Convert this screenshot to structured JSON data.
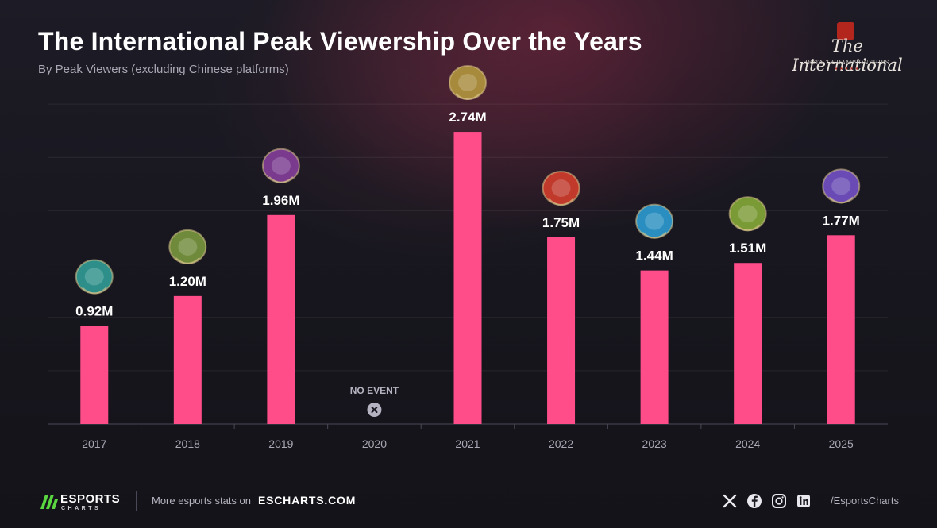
{
  "header": {
    "title": "The International Peak Viewership Over the Years",
    "subtitle": "By Peak Viewers (excluding Chinese platforms)"
  },
  "brand": {
    "script": "The International",
    "tagline": "DOTA 2 CHAMPIONSHIPS",
    "stars": "★★★★★"
  },
  "colors": {
    "bar": "#ff4d8a",
    "background": "#1b1a22",
    "accent_green": "#5ad641"
  },
  "chart_data": {
    "type": "bar",
    "title": "The International Peak Viewership Over the Years",
    "subtitle": "By Peak Viewers (excluding Chinese platforms)",
    "categories": [
      "2017",
      "2018",
      "2019",
      "2020",
      "2021",
      "2022",
      "2023",
      "2024",
      "2025"
    ],
    "values": [
      0.92,
      1.2,
      1.96,
      null,
      2.74,
      1.75,
      1.44,
      1.51,
      1.77
    ],
    "value_labels": [
      "0.92M",
      "1.20M",
      "1.96M",
      "",
      "2.74M",
      "1.75M",
      "1.44M",
      "1.51M",
      "1.77M"
    ],
    "unit": "M",
    "no_event_label": "NO EVENT",
    "no_event_index": 3,
    "ylim": [
      0,
      3.5
    ],
    "grid": true,
    "trophy_colors": [
      "#2e8f8a",
      "#6e8a3a",
      "#7a3b8f",
      "",
      "#a88a3c",
      "#c0392b",
      "#2a8fc0",
      "#7a9a35",
      "#6a4bb5"
    ]
  },
  "footer": {
    "logo_word": "ESPORTS",
    "logo_sub": "CHARTS",
    "promo_text": "More esports stats on",
    "site": "ESCHARTS.COM",
    "social_icons": [
      "x-icon",
      "facebook-icon",
      "instagram-icon",
      "linkedin-icon"
    ],
    "handle": "/EsportsCharts"
  }
}
